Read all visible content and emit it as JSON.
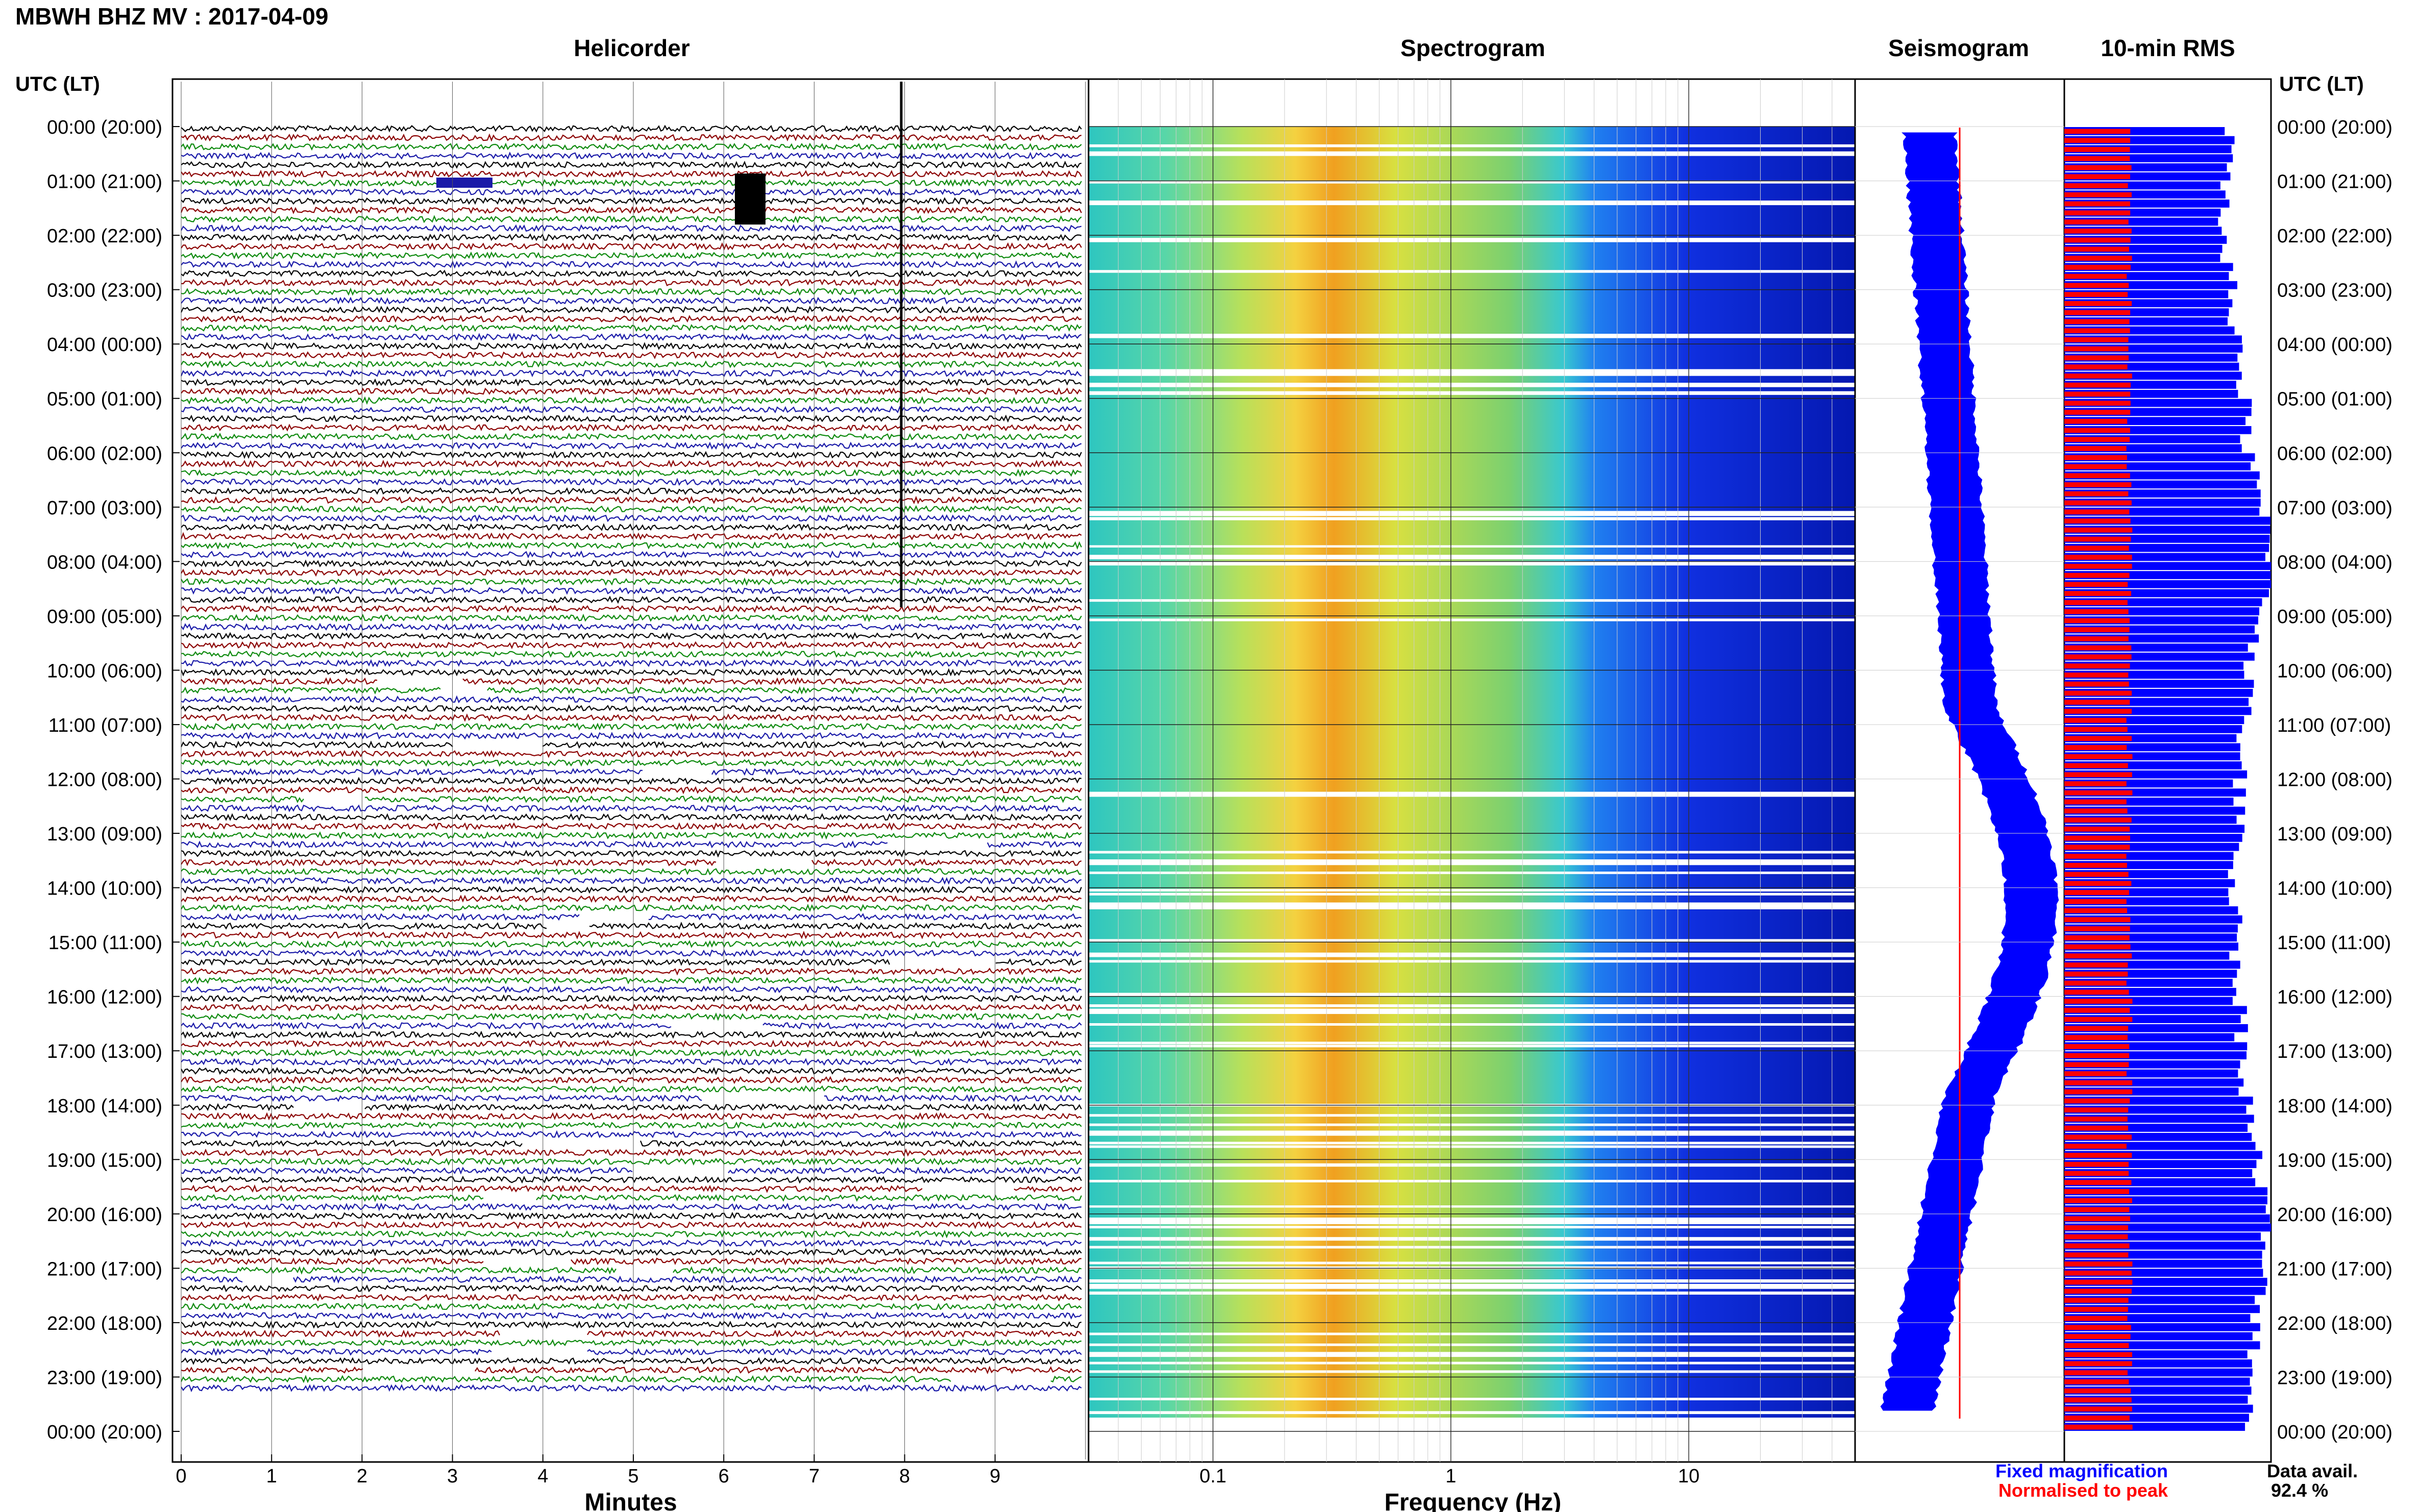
{
  "header": {
    "title": "MBWH BHZ MV : 2017-04-09",
    "utc_label_left": "UTC (LT)",
    "utc_label_right": "UTC (LT)"
  },
  "panels": {
    "helicorder": "Helicorder",
    "spectrogram": "Spectrogram",
    "seismogram": "Seismogram",
    "rms": "10-min RMS"
  },
  "footer": {
    "fixed": "Fixed magnification",
    "normalised": "Normalised to peak",
    "data_avail_label": "Data avail.",
    "data_avail_value": "92.4 %"
  },
  "colors": {
    "trace_cycle": [
      "#000000",
      "#8b0000",
      "#0d8a0d",
      "#1a1aa8"
    ],
    "fixed": "#0000ff",
    "normalised": "#ff0000"
  },
  "chart_data": [
    {
      "type": "line",
      "name": "helicorder",
      "xlabel": "Minutes",
      "xticks": [
        "0",
        "1",
        "2",
        "3",
        "4",
        "5",
        "6",
        "7",
        "8",
        "9"
      ],
      "xlim": [
        0,
        10
      ],
      "y_time_labels": [
        "00:00 (20:00)",
        "01:00 (21:00)",
        "02:00 (22:00)",
        "03:00 (23:00)",
        "04:00 (00:00)",
        "05:00 (01:00)",
        "06:00 (02:00)",
        "07:00 (03:00)",
        "08:00 (04:00)",
        "09:00 (05:00)",
        "10:00 (06:00)",
        "11:00 (07:00)",
        "12:00 (08:00)",
        "13:00 (09:00)",
        "14:00 (10:00)",
        "15:00 (11:00)",
        "16:00 (12:00)",
        "17:00 (13:00)",
        "18:00 (14:00)",
        "19:00 (15:00)",
        "20:00 (16:00)",
        "21:00 (17:00)",
        "22:00 (18:00)",
        "23:00 (19:00)",
        "00:00 (20:00)"
      ],
      "lines_per_hour": 6
    },
    {
      "type": "heatmap",
      "name": "spectrogram",
      "xlabel": "Frequency (Hz)",
      "xscale": "log",
      "xlim": [
        0.03,
        50
      ],
      "xticks": [
        "0.1",
        "1",
        "10"
      ]
    },
    {
      "type": "line",
      "name": "seismogram",
      "series": [
        "fixed",
        "normalised"
      ]
    },
    {
      "type": "bar",
      "name": "10-min rms",
      "orientation": "horizontal",
      "fixed_profile": [
        [
          0,
          0.9
        ],
        [
          2,
          0.85
        ],
        [
          4,
          0.95
        ],
        [
          6,
          1.0
        ],
        [
          8,
          1.15
        ],
        [
          10,
          1.0
        ],
        [
          12,
          0.95
        ],
        [
          14,
          0.92
        ],
        [
          16,
          0.95
        ],
        [
          18,
          1.0
        ],
        [
          20,
          1.1
        ],
        [
          22,
          1.05
        ],
        [
          24,
          1.0
        ]
      ],
      "normalised_level": 0.3
    }
  ]
}
